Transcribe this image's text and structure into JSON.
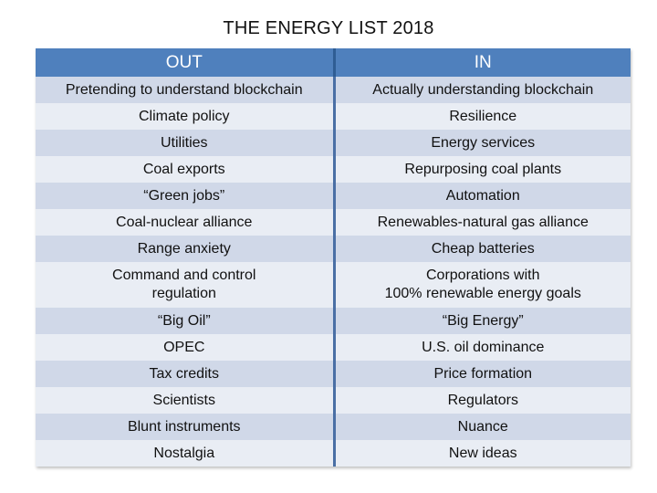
{
  "title": "THE ENERGY LIST 2018",
  "headers": {
    "out": "OUT",
    "in": "IN"
  },
  "colors": {
    "header": "#4f80bd",
    "row_odd": "#d0d8e8",
    "row_even": "#e9edf4",
    "divider": "#4a6fa5"
  },
  "rows": [
    {
      "out": [
        "Pretending to understand blockchain"
      ],
      "in": [
        "Actually understanding blockchain"
      ]
    },
    {
      "out": [
        "Climate policy"
      ],
      "in": [
        "Resilience"
      ]
    },
    {
      "out": [
        "Utilities"
      ],
      "in": [
        "Energy services"
      ]
    },
    {
      "out": [
        "Coal exports"
      ],
      "in": [
        "Repurposing coal plants"
      ]
    },
    {
      "out": [
        "“Green jobs”"
      ],
      "in": [
        "Automation"
      ]
    },
    {
      "out": [
        "Coal-nuclear alliance"
      ],
      "in": [
        "Renewables-natural gas alliance"
      ]
    },
    {
      "out": [
        "Range anxiety"
      ],
      "in": [
        "Cheap batteries"
      ]
    },
    {
      "out": [
        "Command and control",
        "regulation"
      ],
      "in": [
        "Corporations with",
        "100% renewable energy goals"
      ]
    },
    {
      "out": [
        "“Big Oil”"
      ],
      "in": [
        "“Big Energy”"
      ]
    },
    {
      "out": [
        "OPEC"
      ],
      "in": [
        "U.S. oil dominance"
      ]
    },
    {
      "out": [
        "Tax credits"
      ],
      "in": [
        "Price formation"
      ]
    },
    {
      "out": [
        "Scientists"
      ],
      "in": [
        "Regulators"
      ]
    },
    {
      "out": [
        "Blunt instruments"
      ],
      "in": [
        "Nuance"
      ]
    },
    {
      "out": [
        "Nostalgia"
      ],
      "in": [
        "New ideas"
      ]
    }
  ]
}
